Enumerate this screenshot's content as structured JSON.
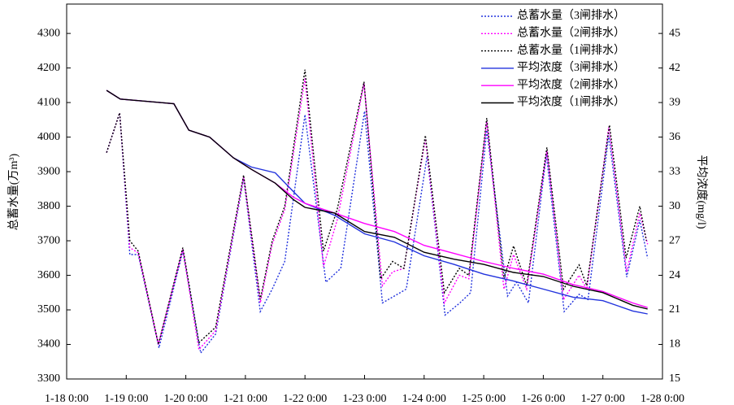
{
  "chart_data": {
    "type": "line",
    "ylabel": "总蓄水量(万m³)",
    "y2label": "平均浓度(mg/l)",
    "xlim": [
      18,
      28
    ],
    "xticks": [
      {
        "value": 18,
        "label": "1-18 0:00"
      },
      {
        "value": 19,
        "label": "1-19 0:00"
      },
      {
        "value": 20,
        "label": "1-20 0:00"
      },
      {
        "value": 21,
        "label": "1-21 0:00"
      },
      {
        "value": 22,
        "label": "1-22 0:00"
      },
      {
        "value": 23,
        "label": "1-23 0:00"
      },
      {
        "value": 24,
        "label": "1-24 0:00"
      },
      {
        "value": 25,
        "label": "1-25 0:00"
      },
      {
        "value": 26,
        "label": "1-26 0:00"
      },
      {
        "value": 27,
        "label": "1-27 0:00"
      },
      {
        "value": 28,
        "label": "1-28 0:00"
      }
    ],
    "ylim": [
      3300,
      4385
    ],
    "yticks": [
      3300,
      3400,
      3500,
      3600,
      3700,
      3800,
      3900,
      4000,
      4100,
      4200,
      4300
    ],
    "y2lim": [
      15,
      47.55
    ],
    "y2ticks": [
      15,
      18,
      21,
      24,
      27,
      30,
      33,
      36,
      39,
      42,
      45
    ],
    "series": [
      {
        "name": "总蓄水量（3闸排水）",
        "color": "#2233dd",
        "style": "dotted",
        "x": [
          18.67,
          18.89,
          19.06,
          19.2,
          19.55,
          19.95,
          20.25,
          20.5,
          20.97,
          21.25,
          21.45,
          21.66,
          22.0,
          22.35,
          22.6,
          23.0,
          23.3,
          23.5,
          23.7,
          24.05,
          24.35,
          24.6,
          24.78,
          25.05,
          25.4,
          25.55,
          25.75,
          26.05,
          26.35,
          26.6,
          26.75,
          27.1,
          27.4,
          27.62,
          27.75
        ],
        "values": [
          3955,
          4070,
          3660,
          3660,
          3390,
          3670,
          3375,
          3430,
          3880,
          3495,
          3560,
          3640,
          4065,
          3580,
          3620,
          4075,
          3520,
          3540,
          3560,
          3945,
          3485,
          3520,
          3550,
          4020,
          3540,
          3580,
          3520,
          3950,
          3495,
          3545,
          3530,
          4005,
          3595,
          3760,
          3650
        ],
        "axis": "y"
      },
      {
        "name": "总蓄水量（2闸排水）",
        "color": "#ff00ff",
        "style": "dotted",
        "x": [
          18.67,
          18.89,
          19.06,
          19.2,
          19.54,
          19.95,
          20.22,
          20.5,
          20.97,
          21.25,
          21.45,
          21.66,
          22.0,
          22.31,
          22.54,
          22.99,
          23.3,
          23.47,
          23.66,
          24.02,
          24.34,
          24.59,
          24.75,
          25.05,
          25.34,
          25.5,
          25.72,
          26.06,
          26.34,
          26.6,
          26.73,
          27.1,
          27.4,
          27.62,
          27.75
        ],
        "values": [
          3955,
          4070,
          3680,
          3665,
          3400,
          3675,
          3385,
          3440,
          3885,
          3520,
          3690,
          3790,
          4170,
          3625,
          3760,
          4155,
          3570,
          3610,
          3620,
          3995,
          3520,
          3600,
          3590,
          4045,
          3560,
          3660,
          3560,
          3960,
          3530,
          3600,
          3560,
          4030,
          3610,
          3780,
          3690
        ],
        "axis": "y"
      },
      {
        "name": "总蓄水量（1闸排水）",
        "color": "#000000",
        "style": "dotted",
        "x": [
          18.67,
          18.89,
          19.06,
          19.2,
          19.54,
          19.95,
          20.22,
          20.5,
          20.97,
          21.25,
          21.45,
          21.66,
          22.0,
          22.31,
          22.54,
          22.99,
          23.27,
          23.47,
          23.66,
          24.02,
          24.34,
          24.59,
          24.75,
          25.05,
          25.34,
          25.5,
          25.72,
          26.06,
          26.34,
          26.6,
          26.73,
          27.11,
          27.39,
          27.62,
          27.73
        ],
        "values": [
          3955,
          4070,
          3700,
          3670,
          3400,
          3680,
          3405,
          3450,
          3890,
          3530,
          3700,
          3800,
          4195,
          3670,
          3790,
          4160,
          3590,
          3640,
          3620,
          4005,
          3550,
          3620,
          3600,
          4055,
          3590,
          3685,
          3570,
          3970,
          3560,
          3630,
          3570,
          4035,
          3650,
          3800,
          3700
        ],
        "axis": "y"
      },
      {
        "name": "平均浓度（3闸排水）",
        "color": "#2233dd",
        "style": "solid",
        "x": [
          18.67,
          18.9,
          19.8,
          20.05,
          20.4,
          20.8,
          21.1,
          21.5,
          21.8,
          22.0,
          22.5,
          23.0,
          23.5,
          24.0,
          24.5,
          25.0,
          25.5,
          26.0,
          26.5,
          27.0,
          27.5,
          27.75
        ],
        "values": [
          40.06,
          39.3,
          38.9,
          36.6,
          36.0,
          34.2,
          33.4,
          32.9,
          31.3,
          30.25,
          29.2,
          27.6,
          26.9,
          25.7,
          24.95,
          24.1,
          23.5,
          22.8,
          22.1,
          21.8,
          20.9,
          20.65
        ],
        "axis": "y2"
      },
      {
        "name": "平均浓度（2闸排水）",
        "color": "#ff00ff",
        "style": "solid",
        "x": [
          18.67,
          18.9,
          19.8,
          20.05,
          20.4,
          20.8,
          21.1,
          21.5,
          21.8,
          22.0,
          22.5,
          23.0,
          23.5,
          24.0,
          24.5,
          25.0,
          25.5,
          26.0,
          26.5,
          27.0,
          27.5,
          27.75
        ],
        "values": [
          40.06,
          39.3,
          38.9,
          36.6,
          36.0,
          34.2,
          33.2,
          32.0,
          30.8,
          30.25,
          29.4,
          28.5,
          27.8,
          26.6,
          25.9,
          25.2,
          24.6,
          24.1,
          23.2,
          22.6,
          21.6,
          21.2
        ],
        "axis": "y2"
      },
      {
        "name": "平均浓度（1闸排水）",
        "color": "#000000",
        "style": "solid",
        "x": [
          18.67,
          18.9,
          19.8,
          20.05,
          20.4,
          20.8,
          21.1,
          21.5,
          21.8,
          22.0,
          22.5,
          23.0,
          23.5,
          24.0,
          24.5,
          25.0,
          25.5,
          26.0,
          26.5,
          27.0,
          27.5,
          27.75
        ],
        "values": [
          40.06,
          39.3,
          38.9,
          36.6,
          36.0,
          34.2,
          33.2,
          32.0,
          30.6,
          29.9,
          29.4,
          27.8,
          27.3,
          26.0,
          25.4,
          24.95,
          24.25,
          23.9,
          23.05,
          22.5,
          21.4,
          21.07
        ],
        "axis": "y2"
      }
    ],
    "legend": "upper-right"
  }
}
